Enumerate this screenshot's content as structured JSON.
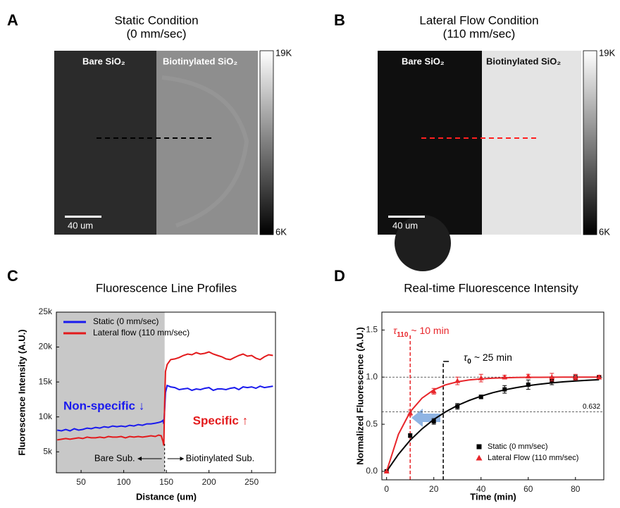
{
  "images": [
    {
      "letter": "A",
      "title": "Static Condition",
      "subtitle": "(0 mm/sec)",
      "left_label": "Bare SiO₂",
      "right_label": "Biotinylated SiO₂",
      "scale_bar": "40 um",
      "colorbar_max": "19K",
      "colorbar_min": "6K",
      "line_color": "#000000"
    },
    {
      "letter": "B",
      "title": "Lateral Flow Condition",
      "subtitle": "(110 mm/sec)",
      "left_label": "Bare SiO₂",
      "right_label": "Biotinylated SiO₂",
      "scale_bar": "40 um",
      "colorbar_max": "19K",
      "colorbar_min": "6K",
      "line_color": "#ff2020"
    }
  ],
  "chart_data": [
    {
      "type": "line",
      "letter": "C",
      "title": "Fluorescence Line Profiles",
      "x_label": "Distance (um)",
      "y_label": "Fluorescence Intensity (A.U.)",
      "xlim": [
        21,
        278
      ],
      "xticks": [
        50,
        100,
        150,
        200,
        250
      ],
      "ylim": [
        2000,
        25000
      ],
      "yticks": [
        {
          "value": 5000,
          "label": "5k"
        },
        {
          "value": 10000,
          "label": "10k"
        },
        {
          "value": 15000,
          "label": "15k"
        },
        {
          "value": 20000,
          "label": "20k"
        },
        {
          "value": 25000,
          "label": "25k"
        }
      ],
      "legend": "upper left",
      "boundary": 148,
      "shade_color": "#c8c8c8",
      "x": [
        22,
        27,
        32,
        37,
        42,
        47,
        52,
        57,
        62,
        67,
        72,
        77,
        82,
        87,
        92,
        97,
        102,
        107,
        112,
        117,
        122,
        127,
        132,
        137,
        141,
        144,
        146,
        147,
        148,
        149,
        151,
        155,
        160,
        165,
        170,
        175,
        180,
        185,
        190,
        195,
        200,
        205,
        210,
        215,
        220,
        225,
        230,
        235,
        240,
        245,
        250,
        255,
        260,
        265,
        270,
        275
      ],
      "series": [
        {
          "name": "Static (0 mm/sec)",
          "color": "#1a1aee",
          "values": [
            8100,
            8000,
            8200,
            8000,
            8300,
            8100,
            8200,
            8400,
            8300,
            8500,
            8400,
            8600,
            8500,
            8700,
            8600,
            8700,
            8600,
            8800,
            8700,
            8900,
            8800,
            9000,
            9000,
            9100,
            9200,
            9300,
            9500,
            9000,
            11000,
            13500,
            14500,
            14300,
            14200,
            13900,
            14000,
            14100,
            13800,
            14000,
            13900,
            14100,
            14200,
            13800,
            14000,
            14000,
            13900,
            14100,
            14200,
            13900,
            14300,
            14200,
            14300,
            14100,
            14400,
            14200,
            14300,
            14400
          ]
        },
        {
          "name": "Lateral flow (110 mm/sec)",
          "color": "#e31a1c",
          "values": [
            6700,
            6800,
            6900,
            6800,
            6900,
            7000,
            6900,
            7100,
            7000,
            7000,
            7100,
            7000,
            7200,
            7100,
            7100,
            7200,
            7000,
            7200,
            7100,
            7200,
            7100,
            7200,
            7300,
            7200,
            7400,
            7300,
            6500,
            5900,
            12000,
            16500,
            17500,
            18200,
            18300,
            18500,
            18800,
            19000,
            18900,
            19200,
            19000,
            19100,
            19300,
            19000,
            18800,
            18600,
            18300,
            18200,
            18500,
            18800,
            19000,
            18700,
            18800,
            18400,
            18200,
            18600,
            18900,
            18800
          ]
        }
      ],
      "annotations": {
        "nonspecific": "Non-specific ↓",
        "specific": "Specific ↑",
        "bare": "Bare Sub.",
        "biotin": "Biotinylated Sub."
      }
    },
    {
      "type": "scatter",
      "letter": "D",
      "title": "Real-time Fluorescence Intensity",
      "x_label": "Time (min)",
      "y_label": "Normalized Fluorescence (A.U.)",
      "xlim": [
        -2,
        92
      ],
      "xticks": [
        0,
        20,
        40,
        60,
        80
      ],
      "ylim": [
        -0.09,
        1.69
      ],
      "yticks": [
        {
          "value": 0,
          "label": "0.0"
        },
        0.5,
        {
          "value": 1,
          "label": "1.0"
        },
        1.5
      ],
      "legend": "lower right",
      "series": [
        {
          "name": "Static (0 mm/sec)",
          "color": "#000000",
          "marker": "square",
          "x": [
            0,
            10,
            20,
            30,
            40,
            50,
            60,
            70,
            80,
            90
          ],
          "values": [
            0,
            0.38,
            0.53,
            0.69,
            0.79,
            0.87,
            0.92,
            0.96,
            0.99,
            1.0
          ],
          "errors": [
            0,
            0.02,
            0.03,
            0.03,
            0.02,
            0.04,
            0.05,
            0.04,
            0.03,
            0.02
          ]
        },
        {
          "name": "Lateral Flow (110 mm/sec)",
          "color": "#e8262b",
          "marker": "triangle",
          "x": [
            0,
            10,
            20,
            30,
            40,
            50,
            60,
            70,
            80,
            90
          ],
          "values": [
            0,
            0.62,
            0.85,
            0.96,
            0.99,
            1.0,
            1.01,
            1.0,
            1.0,
            1.0
          ],
          "errors": [
            0,
            0.03,
            0.03,
            0.04,
            0.04,
            0.02,
            0.02,
            0.04,
            0.03,
            0.02
          ]
        }
      ],
      "fits": [
        {
          "color": "#000000",
          "x": [
            0,
            5,
            10,
            15,
            20,
            25,
            30,
            35,
            40,
            45,
            50,
            55,
            60,
            65,
            70,
            75,
            80,
            85,
            90
          ],
          "values": [
            0,
            0.181,
            0.33,
            0.451,
            0.551,
            0.632,
            0.699,
            0.753,
            0.798,
            0.835,
            0.865,
            0.889,
            0.909,
            0.926,
            0.939,
            0.95,
            0.959,
            0.967,
            0.973
          ]
        },
        {
          "color": "#e8262b",
          "x": [
            0,
            5,
            10,
            15,
            20,
            25,
            30,
            35,
            40,
            45,
            50,
            55,
            60,
            65,
            70,
            75,
            80,
            85,
            90
          ],
          "values": [
            0,
            0.393,
            0.632,
            0.777,
            0.865,
            0.918,
            0.95,
            0.97,
            0.982,
            0.989,
            0.993,
            0.996,
            0.998,
            0.998,
            0.999,
            1.0,
            1.0,
            1.0,
            1.0
          ]
        }
      ],
      "hlines": [
        1.0,
        0.632
      ],
      "vlines": [
        {
          "x": 10,
          "color": "#e8262b"
        },
        {
          "x": 24,
          "color": "#000000"
        }
      ],
      "tau_fast": {
        "symbol": "τ",
        "subscript": "110",
        "text": "~ 10 min",
        "color": "#e8262b"
      },
      "tau_slow": {
        "symbol": "τ",
        "subscript": "0",
        "text": "~ 25 min"
      }
    }
  ]
}
